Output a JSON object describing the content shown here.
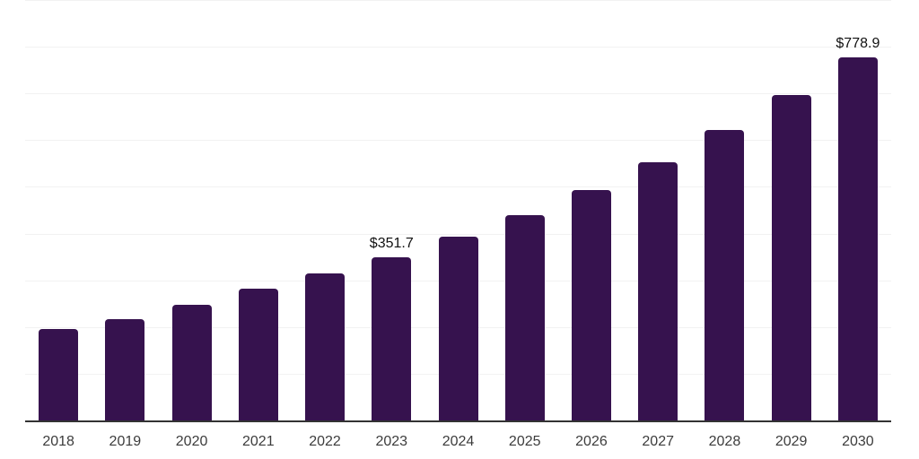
{
  "chart_data": {
    "type": "bar",
    "title": "",
    "xlabel": "",
    "ylabel": "",
    "categories": [
      "2018",
      "2019",
      "2020",
      "2021",
      "2022",
      "2023",
      "2024",
      "2025",
      "2026",
      "2027",
      "2028",
      "2029",
      "2030"
    ],
    "values": [
      196.9,
      218.1,
      249.0,
      283.8,
      316.5,
      351.7,
      395.6,
      442.0,
      496.0,
      554.0,
      623.4,
      698.7,
      778.9
    ],
    "labeled_points": [
      {
        "index": 5,
        "text": "$351.7"
      },
      {
        "index": 12,
        "text": "$778.9"
      }
    ],
    "ylim": [
      0,
      902
    ],
    "gridline_values": [
      100,
      200,
      300,
      400,
      500,
      600,
      700,
      800,
      900
    ],
    "grid": "horizontal",
    "legend": "none",
    "colors": {
      "bar": "#36124E",
      "axis_line": "#333333",
      "gridline": "#f2f2f2",
      "x_label": "#3c3c3c",
      "value_label": "#111111",
      "background": "#ffffff"
    }
  }
}
